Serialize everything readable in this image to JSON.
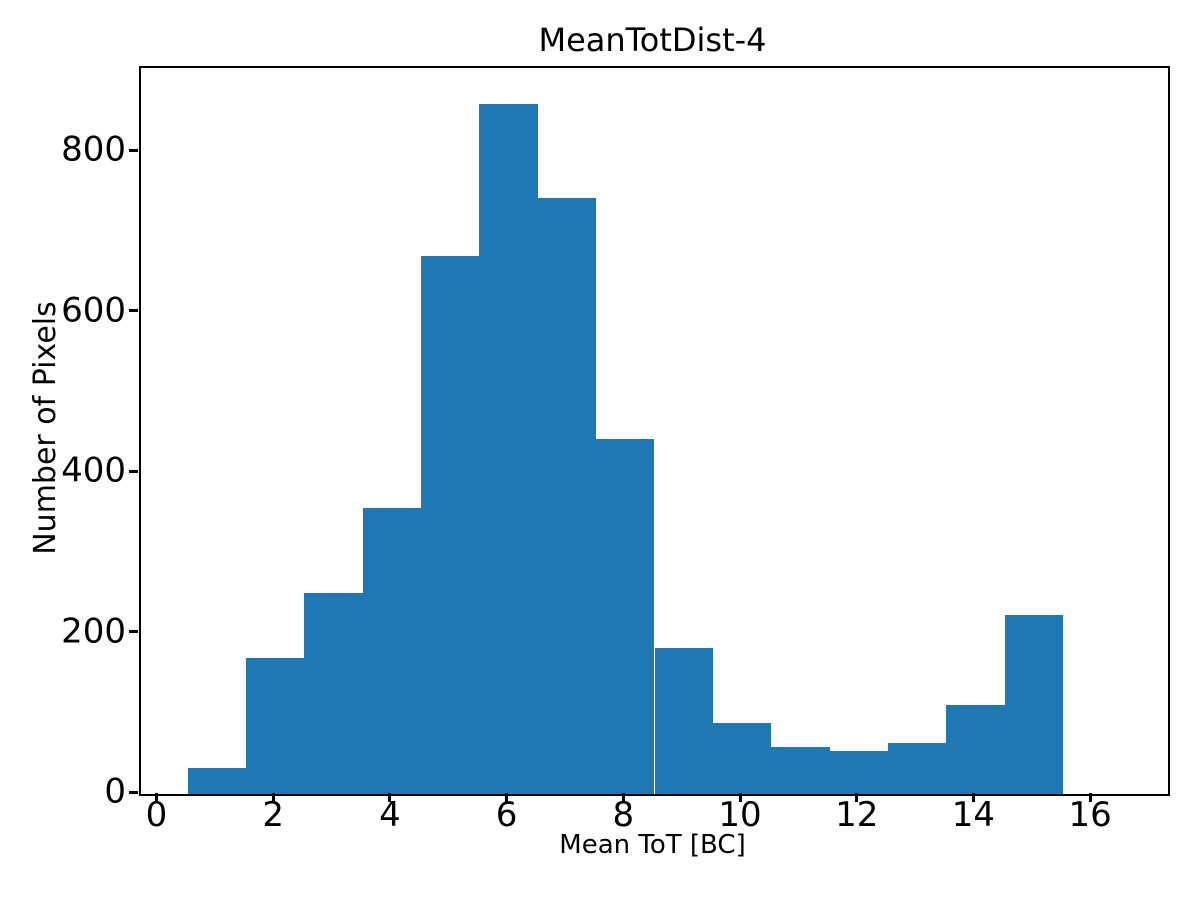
{
  "figure": {
    "title": "MeanTotDist-4",
    "xlabel": "Mean ToT [BC]",
    "ylabel": "Number of Pixels"
  },
  "chart_data": {
    "type": "bar",
    "subtype": "histogram",
    "title": "MeanTotDist-4",
    "xlabel": "Mean ToT [BC]",
    "ylabel": "Number of Pixels",
    "bin_start": 0.5,
    "bin_width": 1.0,
    "bin_edges": [
      0.5,
      1.5,
      2.5,
      3.5,
      4.5,
      5.5,
      6.5,
      7.5,
      8.5,
      9.5,
      10.5,
      11.5,
      12.5,
      13.5,
      14.5,
      15.5
    ],
    "counts": [
      33,
      170,
      250,
      357,
      671,
      860,
      743,
      443,
      182,
      89,
      58,
      54,
      64,
      111,
      223
    ],
    "xticks": [
      0,
      2,
      4,
      6,
      8,
      10,
      12,
      14,
      16
    ],
    "yticks": [
      0,
      200,
      400,
      600,
      800
    ],
    "xlim": [
      -0.3,
      17.3
    ],
    "ylim": [
      0,
      905
    ],
    "grid": false,
    "legend": "none",
    "bar_color": "#1f77b4",
    "axis_color": "#000000",
    "background_color": "#ffffff"
  }
}
